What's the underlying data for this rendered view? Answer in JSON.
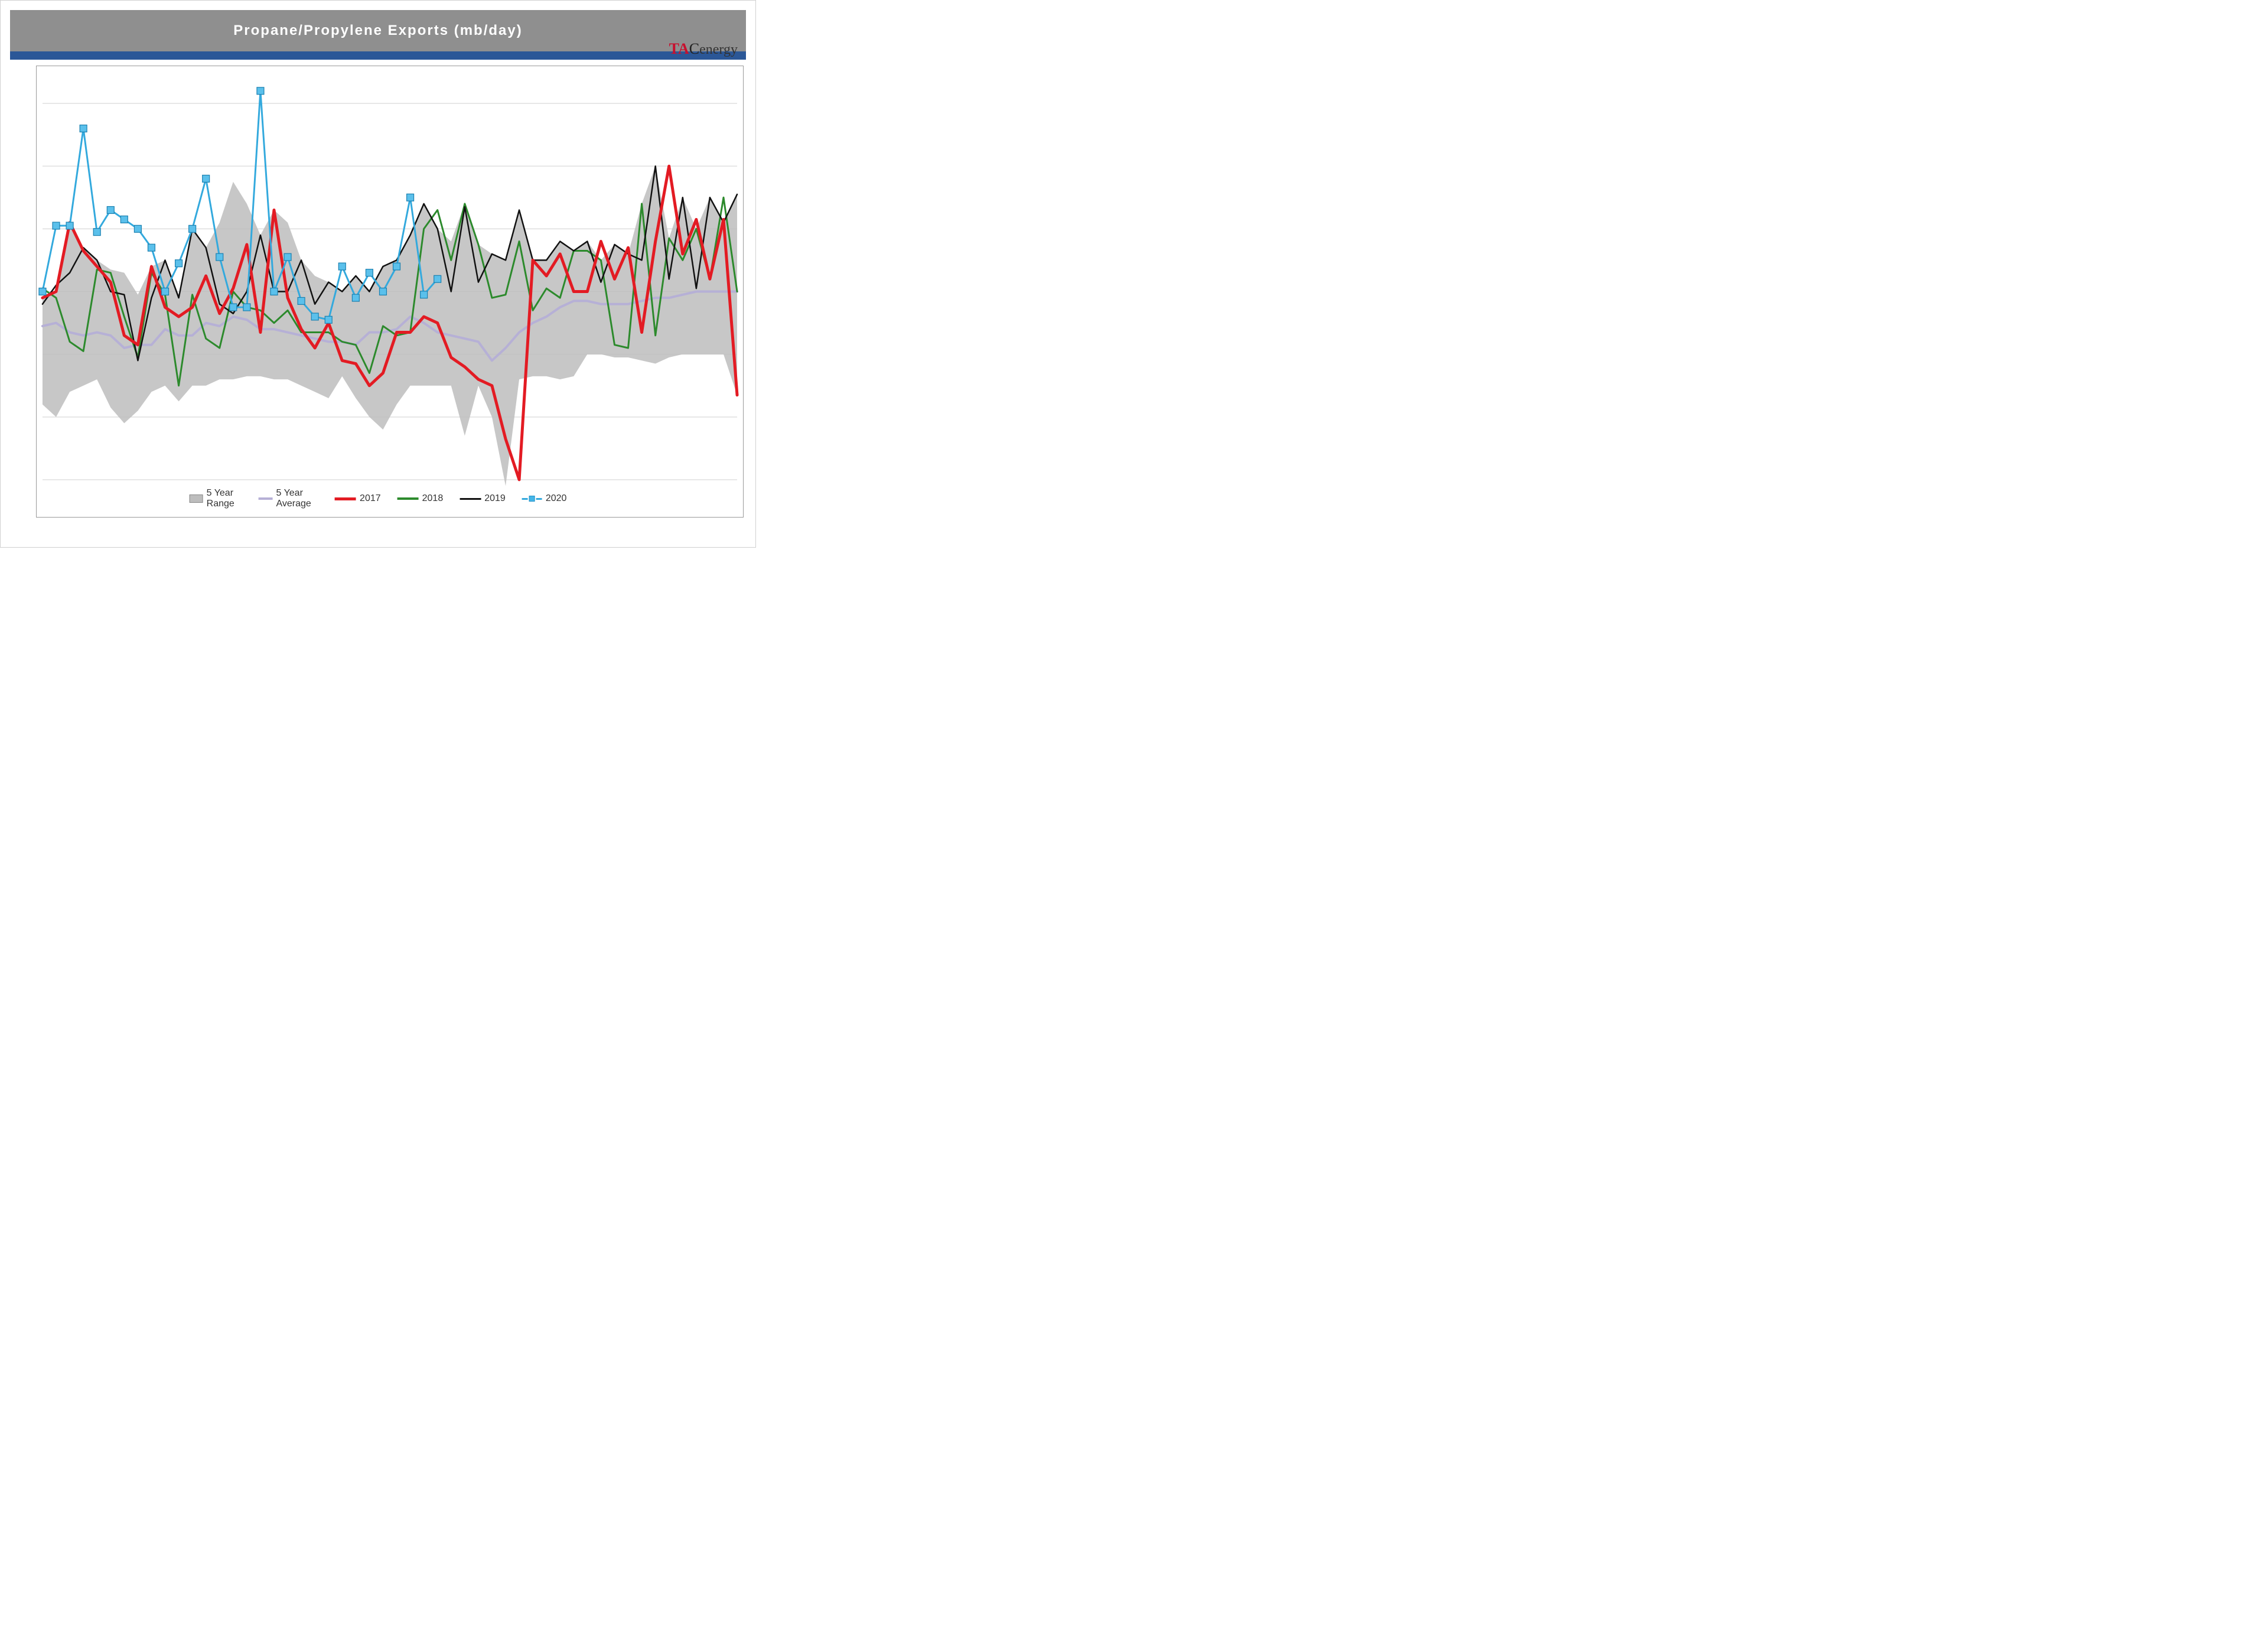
{
  "chart": {
    "type": "line",
    "title": "Propane/Propylene  Exports  (mb/day)",
    "brand": {
      "tac": "TAC",
      "energy": "energy"
    },
    "background_color": "#ffffff",
    "title_bar_color": "#8f8f8f",
    "title_text_color": "#ffffff",
    "title_fontsize": 24,
    "blue_band_color": "#2b5797",
    "plot_border_color": "#999999",
    "grid_color": "#cfcfcf",
    "grid_width": 1,
    "x_count": 52,
    "ylim": [
      300,
      1700
    ],
    "ytick_step": 200,
    "yticks": [
      400,
      600,
      800,
      1000,
      1200,
      1400,
      1600
    ],
    "range_fill": "#bdbdbd",
    "legend": {
      "items": [
        {
          "key": "range",
          "label": "5 Year Range"
        },
        {
          "key": "avg",
          "label": "5 Year Average"
        },
        {
          "key": "s2017",
          "label": "2017"
        },
        {
          "key": "s2018",
          "label": "2018"
        },
        {
          "key": "s2019",
          "label": "2019"
        },
        {
          "key": "s2020",
          "label": "2020"
        }
      ]
    },
    "series": {
      "range_upper": [
        980,
        1000,
        1220,
        1140,
        1100,
        1070,
        1060,
        990,
        1080,
        1100,
        990,
        1200,
        1140,
        1220,
        1350,
        1280,
        1180,
        1260,
        1220,
        1100,
        1050,
        1030,
        1000,
        1050,
        1000,
        1080,
        1100,
        1180,
        1280,
        1200,
        1160,
        1280,
        1150,
        1120,
        1100,
        1260,
        1100,
        1100,
        1160,
        1130,
        1160,
        1100,
        1150,
        1120,
        1280,
        1400,
        1170,
        1300,
        1200,
        1300,
        1220,
        1310
      ],
      "range_lower": [
        640,
        600,
        680,
        700,
        720,
        630,
        580,
        620,
        680,
        700,
        650,
        700,
        700,
        720,
        720,
        730,
        730,
        720,
        720,
        700,
        680,
        660,
        730,
        660,
        600,
        560,
        640,
        700,
        700,
        700,
        700,
        540,
        700,
        600,
        380,
        720,
        730,
        730,
        720,
        730,
        800,
        800,
        790,
        790,
        780,
        770,
        790,
        800,
        800,
        800,
        800,
        670
      ],
      "avg": {
        "color": "#b6b0d6",
        "width": 4,
        "values": [
          890,
          900,
          870,
          860,
          870,
          860,
          820,
          830,
          830,
          880,
          860,
          860,
          900,
          890,
          920,
          910,
          880,
          880,
          870,
          860,
          850,
          840,
          840,
          830,
          870,
          870,
          880,
          920,
          900,
          870,
          860,
          850,
          840,
          780,
          820,
          870,
          900,
          920,
          950,
          970,
          970,
          960,
          960,
          960,
          970,
          980,
          980,
          990,
          1000,
          1000,
          1000,
          1000
        ]
      },
      "s2017": {
        "color": "#e31b23",
        "width": 5,
        "values": [
          980,
          1000,
          1220,
          1130,
          1080,
          1030,
          860,
          830,
          1080,
          950,
          920,
          950,
          1050,
          930,
          1010,
          1150,
          870,
          1260,
          980,
          880,
          820,
          900,
          780,
          770,
          700,
          740,
          870,
          870,
          920,
          900,
          790,
          760,
          720,
          700,
          530,
          400,
          1100,
          1050,
          1120,
          1000,
          1000,
          1160,
          1040,
          1140,
          870,
          1160,
          1400,
          1120,
          1230,
          1040,
          1230,
          670
        ],
        "s2017_width": 5
      },
      "s2018": {
        "color": "#2c8a2c",
        "width": 3,
        "values": [
          1010,
          980,
          840,
          810,
          1070,
          1060,
          920,
          790,
          1060,
          990,
          700,
          990,
          850,
          820,
          1000,
          950,
          940,
          900,
          940,
          870,
          870,
          870,
          840,
          830,
          740,
          890,
          860,
          870,
          1200,
          1260,
          1100,
          1280,
          1150,
          980,
          990,
          1160,
          940,
          1010,
          980,
          1130,
          1130,
          1100,
          830,
          820,
          1280,
          860,
          1170,
          1100,
          1200,
          1040,
          1300,
          1000
        ]
      },
      "s2019": {
        "color": "#111111",
        "width": 2.5,
        "values": [
          960,
          1020,
          1060,
          1140,
          1100,
          1000,
          990,
          780,
          980,
          1100,
          980,
          1200,
          1140,
          960,
          930,
          1000,
          1180,
          1000,
          1000,
          1100,
          960,
          1030,
          1000,
          1050,
          1000,
          1080,
          1100,
          1180,
          1280,
          1200,
          1000,
          1270,
          1030,
          1120,
          1100,
          1260,
          1100,
          1100,
          1160,
          1130,
          1160,
          1030,
          1150,
          1120,
          1100,
          1400,
          1040,
          1300,
          1010,
          1300,
          1220,
          1310
        ]
      },
      "s2020": {
        "color": "#33a9dd",
        "marker_fill": "#5bc0eb",
        "marker_stroke": "#1a80b0",
        "marker_size": 12,
        "width": 3,
        "values": [
          1000,
          1210,
          1210,
          1520,
          1190,
          1260,
          1230,
          1200,
          1140,
          1000,
          1090,
          1200,
          1360,
          1110,
          950,
          950,
          1640,
          1000,
          1110,
          970,
          920,
          910,
          1080,
          980,
          1060,
          1000,
          1080,
          1300,
          990,
          1040
        ]
      }
    }
  }
}
